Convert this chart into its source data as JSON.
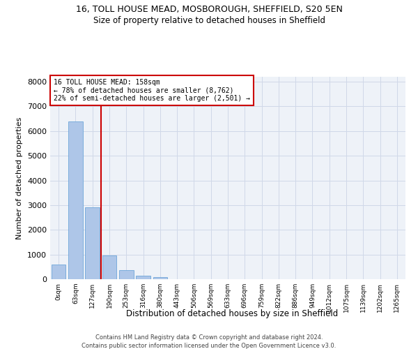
{
  "title1": "16, TOLL HOUSE MEAD, MOSBOROUGH, SHEFFIELD, S20 5EN",
  "title2": "Size of property relative to detached houses in Sheffield",
  "xlabel": "Distribution of detached houses by size in Sheffield",
  "ylabel": "Number of detached properties",
  "categories": [
    "0sqm",
    "63sqm",
    "127sqm",
    "190sqm",
    "253sqm",
    "316sqm",
    "380sqm",
    "443sqm",
    "506sqm",
    "569sqm",
    "633sqm",
    "696sqm",
    "759sqm",
    "822sqm",
    "886sqm",
    "949sqm",
    "1012sqm",
    "1075sqm",
    "1139sqm",
    "1202sqm",
    "1265sqm"
  ],
  "values": [
    580,
    6400,
    2900,
    960,
    360,
    150,
    75,
    0,
    0,
    0,
    0,
    0,
    0,
    0,
    0,
    0,
    0,
    0,
    0,
    0,
    0
  ],
  "bar_color": "#aec6e8",
  "bar_edge_color": "#5b9bd5",
  "property_line_color": "#cc0000",
  "annotation_line1": "16 TOLL HOUSE MEAD: 158sqm",
  "annotation_line2": "← 78% of detached houses are smaller (8,762)",
  "annotation_line3": "22% of semi-detached houses are larger (2,501) →",
  "annotation_box_color": "#cc0000",
  "ylim": [
    0,
    8200
  ],
  "yticks": [
    0,
    1000,
    2000,
    3000,
    4000,
    5000,
    6000,
    7000,
    8000
  ],
  "grid_color": "#d0d8e8",
  "bg_color": "#eef2f8",
  "footer1": "Contains HM Land Registry data © Crown copyright and database right 2024.",
  "footer2": "Contains public sector information licensed under the Open Government Licence v3.0."
}
